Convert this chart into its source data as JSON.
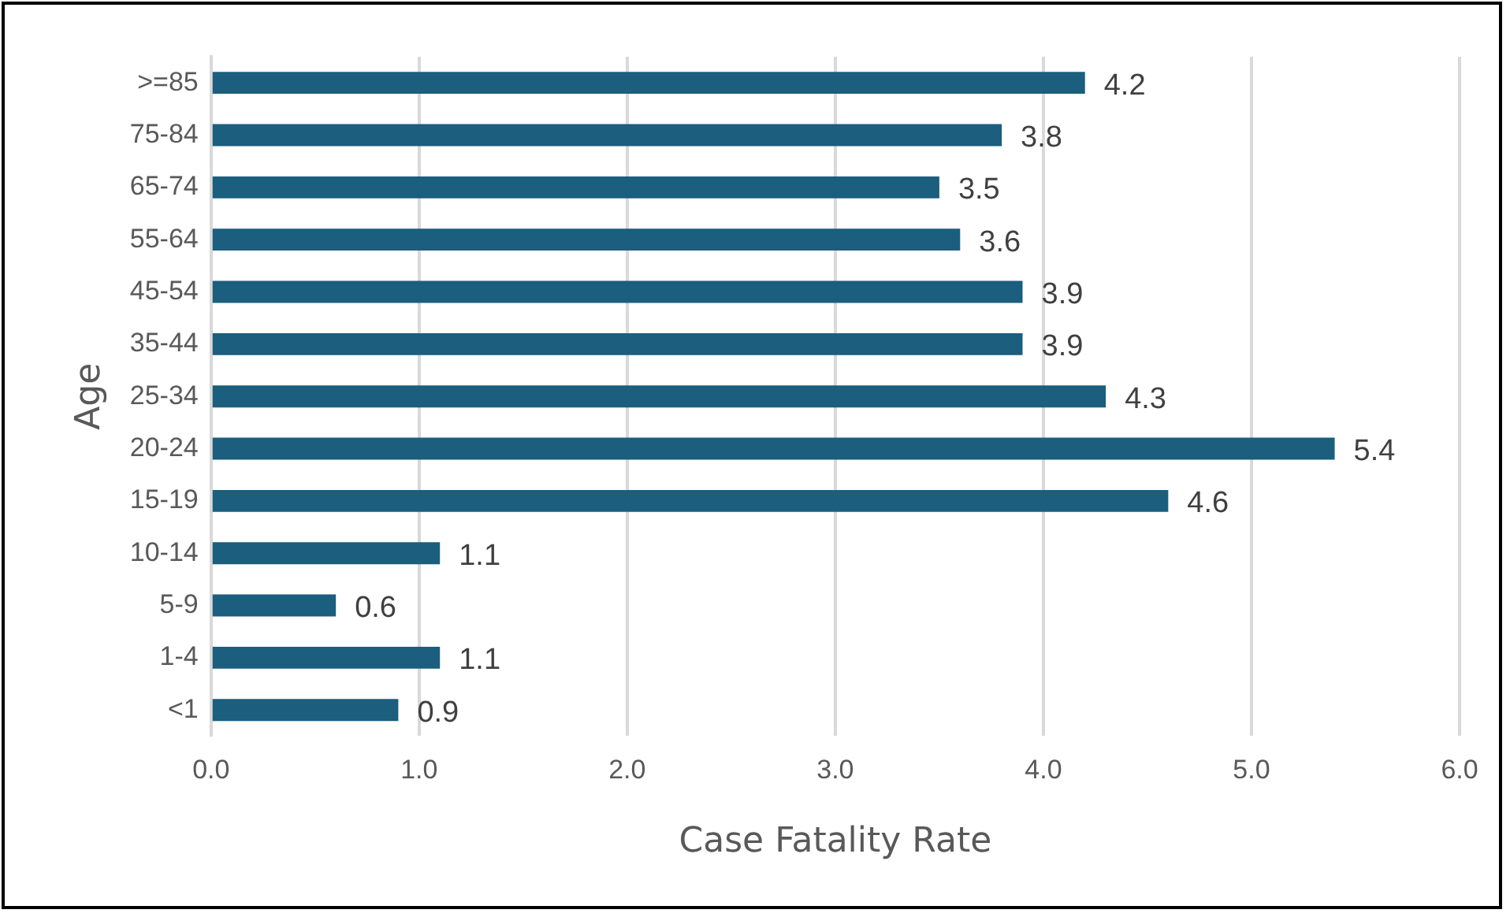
{
  "chart_data": {
    "type": "bar",
    "orientation": "horizontal",
    "xlabel": "Case Fatality Rate",
    "ylabel": "Age",
    "categories": [
      ">=85",
      "75-84",
      "65-74",
      "55-64",
      "45-54",
      "35-44",
      "25-34",
      "20-24",
      "15-19",
      "10-14",
      "5-9",
      "1-4",
      "<1"
    ],
    "values": [
      4.2,
      3.8,
      3.5,
      3.6,
      3.9,
      3.9,
      4.3,
      5.4,
      4.6,
      1.1,
      0.6,
      1.1,
      0.9
    ],
    "color": "#1b5e7e",
    "data_labels": true,
    "grid": "x",
    "legend": false,
    "xlim": [
      0,
      6
    ],
    "xticks": [
      {
        "value": 0,
        "label": "0.0"
      },
      {
        "value": 1,
        "label": "1.0"
      },
      {
        "value": 2,
        "label": "2.0"
      },
      {
        "value": 3,
        "label": "3.0"
      },
      {
        "value": 4,
        "label": "4.0"
      },
      {
        "value": 5,
        "label": "5.0"
      },
      {
        "value": 6,
        "label": "6.0"
      }
    ]
  }
}
